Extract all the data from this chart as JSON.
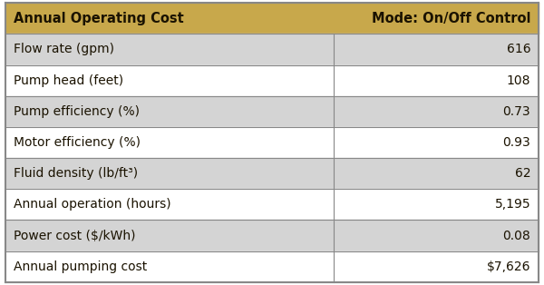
{
  "header_col1": "Annual Operating Cost",
  "header_col2": "Mode: On/Off Control",
  "rows": [
    [
      "Flow rate (gpm)",
      "616"
    ],
    [
      "Pump head (feet)",
      "108"
    ],
    [
      "Pump efficiency (%)",
      "0.73"
    ],
    [
      "Motor efficiency (%)",
      "0.93"
    ],
    [
      "Fluid density (lb/ft³)",
      "62"
    ],
    [
      "Annual operation (hours)",
      "5,195"
    ],
    [
      "Power cost ($/kWh)",
      "0.08"
    ],
    [
      "Annual pumping cost",
      "$7,626"
    ]
  ],
  "header_bg": "#C8A84B",
  "row_bg_odd": "#D4D4D4",
  "row_bg_even": "#FFFFFF",
  "header_text_color": "#1a1200",
  "row_text_color": "#1a1200",
  "border_color": "#888888",
  "outer_border_color": "#888888",
  "col_split": 0.615,
  "fig_width": 6.0,
  "fig_height": 3.14,
  "header_fontsize": 10.5,
  "row_fontsize": 10.0
}
